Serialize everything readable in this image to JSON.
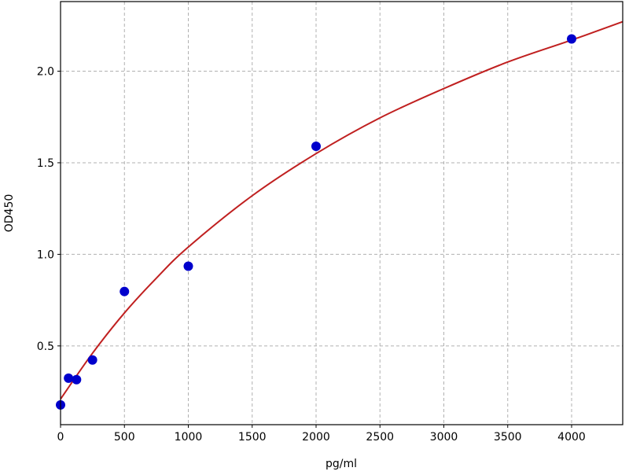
{
  "chart_data": {
    "type": "scatter",
    "title": "",
    "xlabel": "pg/ml",
    "ylabel": "OD450",
    "xlim": [
      0,
      4400
    ],
    "ylim": [
      0.07,
      2.38
    ],
    "x_ticks": [
      0,
      500,
      1000,
      1500,
      2000,
      2500,
      3000,
      3500,
      4000
    ],
    "y_ticks": [
      0.5,
      1.0,
      1.5,
      2.0
    ],
    "y_tick_labels": [
      "0.5",
      "1.0",
      "1.5",
      "2.0"
    ],
    "grid": true,
    "points": {
      "x": [
        0,
        62.5,
        125,
        250,
        500,
        1000,
        2000,
        4000
      ],
      "y": [
        0.178,
        0.324,
        0.316,
        0.423,
        0.797,
        0.935,
        1.59,
        2.176
      ],
      "color": "#0000cc"
    },
    "fit_curve": {
      "x": [
        0,
        250,
        500,
        750,
        1000,
        1500,
        2000,
        2500,
        3000,
        3500,
        4000,
        4400
      ],
      "y": [
        0.21,
        0.46,
        0.68,
        0.87,
        1.04,
        1.32,
        1.55,
        1.745,
        1.905,
        2.05,
        2.17,
        2.27
      ],
      "color": "#c02020"
    }
  }
}
